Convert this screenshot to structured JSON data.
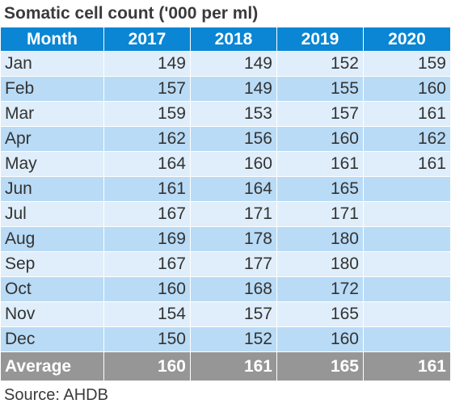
{
  "title": "Somatic cell count ('000 per ml)",
  "header": {
    "month": "Month",
    "years": [
      "2017",
      "2018",
      "2019",
      "2020"
    ]
  },
  "rows": [
    {
      "month": "Jan",
      "values": [
        "149",
        "149",
        "152",
        "159"
      ]
    },
    {
      "month": "Feb",
      "values": [
        "157",
        "149",
        "155",
        "160"
      ]
    },
    {
      "month": "Mar",
      "values": [
        "159",
        "153",
        "157",
        "161"
      ]
    },
    {
      "month": "Apr",
      "values": [
        "162",
        "156",
        "160",
        "162"
      ]
    },
    {
      "month": "May",
      "values": [
        "164",
        "160",
        "161",
        "161"
      ]
    },
    {
      "month": "Jun",
      "values": [
        "161",
        "164",
        "165",
        ""
      ]
    },
    {
      "month": "Jul",
      "values": [
        "167",
        "171",
        "171",
        ""
      ]
    },
    {
      "month": "Aug",
      "values": [
        "169",
        "178",
        "180",
        ""
      ]
    },
    {
      "month": "Sep",
      "values": [
        "167",
        "177",
        "180",
        ""
      ]
    },
    {
      "month": "Oct",
      "values": [
        "160",
        "168",
        "172",
        ""
      ]
    },
    {
      "month": "Nov",
      "values": [
        "154",
        "157",
        "165",
        ""
      ]
    },
    {
      "month": "Dec",
      "values": [
        "150",
        "152",
        "160",
        ""
      ]
    }
  ],
  "average": {
    "label": "Average",
    "values": [
      "160",
      "161",
      "165",
      "161"
    ]
  },
  "source": "Source: AHDB",
  "colors": {
    "header_bg": "#0a86d4",
    "row_light": "#dfeefa",
    "row_dark": "#b9dbf6",
    "footer_bg": "#969696"
  }
}
